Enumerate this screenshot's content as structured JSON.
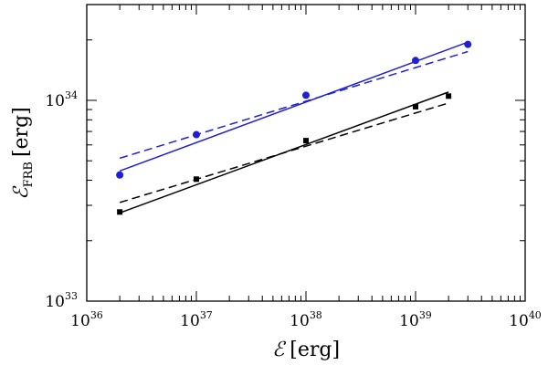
{
  "chart_data": {
    "type": "scatter",
    "xscale": "log",
    "yscale": "log",
    "xlim": [
      1e+36,
      1e+40
    ],
    "ylim": [
      1e+33,
      3e+34
    ],
    "grid": false,
    "xlabel": {
      "symbol": "ℰ",
      "unit": "[erg]"
    },
    "ylabel": {
      "symbol": "ℰ",
      "subscript": "FRB",
      "unit": "[erg]"
    },
    "x_ticks": [
      {
        "base": "10",
        "exp": "36",
        "value": 1e+36
      },
      {
        "base": "10",
        "exp": "37",
        "value": 1e+37
      },
      {
        "base": "10",
        "exp": "38",
        "value": 1e+38
      },
      {
        "base": "10",
        "exp": "39",
        "value": 1e+39
      },
      {
        "base": "10",
        "exp": "40",
        "value": 1e+40
      }
    ],
    "y_ticks": [
      {
        "base": "10",
        "exp": "33",
        "value": 1e+33
      },
      {
        "base": "10",
        "exp": "34",
        "value": 1e+34
      }
    ],
    "series": [
      {
        "color": "#1f1fd6",
        "marker": "circle",
        "points": [
          {
            "x": 2e+36,
            "y": 4.25e+33
          },
          {
            "x": 1e+37,
            "y": 6.75e+33
          },
          {
            "x": 1e+38,
            "y": 1.06e+34
          },
          {
            "x": 1e+39,
            "y": 1.58e+34
          },
          {
            "x": 3e+39,
            "y": 1.9e+34
          }
        ],
        "fits": [
          {
            "style": "solid",
            "from": {
              "x": 2e+36,
              "y": 4.45e+33
            },
            "to": {
              "x": 3e+39,
              "y": 1.95e+34
            }
          },
          {
            "style": "dashed",
            "from": {
              "x": 2e+36,
              "y": 5.15e+33
            },
            "to": {
              "x": 3e+39,
              "y": 1.75e+34
            }
          }
        ]
      },
      {
        "color": "#000000",
        "marker": "square",
        "points": [
          {
            "x": 2e+36,
            "y": 2.78e+33
          },
          {
            "x": 1e+37,
            "y": 4.05e+33
          },
          {
            "x": 1e+38,
            "y": 6.3e+33
          },
          {
            "x": 1e+39,
            "y": 9.3e+33
          },
          {
            "x": 2e+39,
            "y": 1.05e+34
          }
        ],
        "fits": [
          {
            "style": "solid",
            "from": {
              "x": 2e+36,
              "y": 2.75e+33
            },
            "to": {
              "x": 2e+39,
              "y": 1.1e+34
            }
          },
          {
            "style": "dashed",
            "from": {
              "x": 2e+36,
              "y": 3.1e+33
            },
            "to": {
              "x": 2e+39,
              "y": 9.7e+33
            }
          }
        ]
      }
    ]
  }
}
